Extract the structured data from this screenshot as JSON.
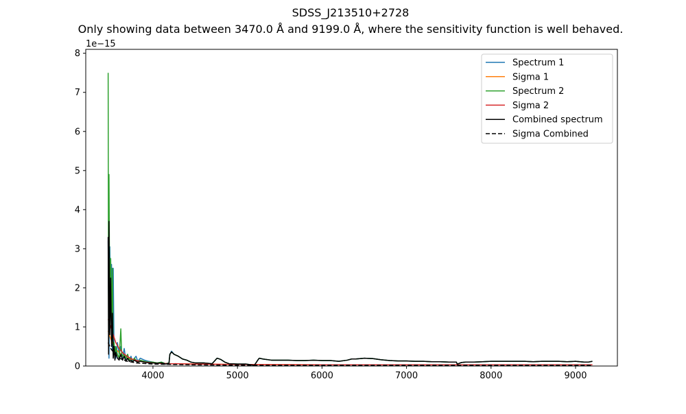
{
  "chart_data": {
    "type": "line",
    "title": "SDSS_J213510+2728",
    "subtitle": "Only showing data between 3470.0 Å and 9199.0 Å, where the sensitivity function is well behaved.",
    "xlabel": "",
    "ylabel": "",
    "y_offset_label": "1e−15",
    "xlim": [
      3205,
      9495
    ],
    "ylim": [
      0,
      8.1
    ],
    "x_ticks": [
      4000,
      5000,
      6000,
      7000,
      8000,
      9000
    ],
    "x_tick_labels": [
      "4000",
      "5000",
      "6000",
      "7000",
      "8000",
      "9000"
    ],
    "y_ticks": [
      0,
      1,
      2,
      3,
      4,
      5,
      6,
      7,
      8
    ],
    "y_tick_labels": [
      "0",
      "1",
      "2",
      "3",
      "4",
      "5",
      "6",
      "7",
      "8"
    ],
    "grid": false,
    "legend_position": "upper right",
    "y_units_scale": "1e-15",
    "series": [
      {
        "name": "Spectrum 1",
        "color": "#1f77b4",
        "dash": "solid",
        "x": [
          3470,
          3480,
          3490,
          3500,
          3510,
          3520,
          3530,
          3540,
          3550,
          3560,
          3580,
          3600,
          3620,
          3640,
          3660,
          3680,
          3700,
          3720,
          3740,
          3760,
          3780,
          3800,
          3820,
          3850,
          3900,
          3950,
          4000,
          4050,
          4100,
          4150,
          4190,
          4200,
          4220,
          4250,
          4300,
          4350,
          4400,
          4450,
          4500,
          4600,
          4700,
          4750,
          4760,
          4800,
          4850,
          4900,
          5000,
          5100,
          5200,
          5250,
          5260,
          5300,
          5400,
          5500,
          5600,
          5700,
          5800,
          5900,
          6000,
          6100,
          6200,
          6300,
          6350,
          6400,
          6500,
          6600,
          6700,
          6800,
          6900,
          7000,
          7100,
          7200,
          7300,
          7400,
          7500,
          7590,
          7600,
          7650,
          7700,
          7800,
          7900,
          8000,
          8100,
          8200,
          8300,
          8400,
          8500,
          8600,
          8700,
          8800,
          8900,
          9000,
          9100,
          9150,
          9199
        ],
        "y": [
          3.2,
          0.2,
          3.05,
          1.5,
          2.6,
          0.4,
          2.5,
          0.3,
          0.5,
          0.2,
          0.6,
          0.3,
          0.5,
          0.2,
          0.45,
          0.15,
          0.3,
          0.15,
          0.25,
          0.1,
          0.2,
          0.25,
          0.12,
          0.2,
          0.15,
          0.12,
          0.1,
          0.08,
          0.1,
          0.06,
          0.08,
          0.3,
          0.38,
          0.3,
          0.25,
          0.18,
          0.15,
          0.1,
          0.08,
          0.08,
          0.06,
          0.18,
          0.2,
          0.17,
          0.1,
          0.06,
          0.05,
          0.05,
          0.02,
          0.18,
          0.2,
          0.18,
          0.15,
          0.15,
          0.15,
          0.14,
          0.14,
          0.15,
          0.14,
          0.14,
          0.12,
          0.15,
          0.18,
          0.18,
          0.2,
          0.19,
          0.16,
          0.14,
          0.13,
          0.13,
          0.12,
          0.12,
          0.11,
          0.11,
          0.1,
          0.1,
          0.05,
          0.09,
          0.1,
          0.1,
          0.11,
          0.12,
          0.12,
          0.12,
          0.12,
          0.12,
          0.11,
          0.12,
          0.12,
          0.12,
          0.11,
          0.12,
          0.1,
          0.1,
          0.12
        ]
      },
      {
        "name": "Sigma 1",
        "color": "#ff7f0e",
        "dash": "solid",
        "x": [
          3470,
          3500,
          3550,
          3600,
          3650,
          3700,
          3800,
          3900,
          4000,
          4200,
          4500,
          5000,
          6000,
          7000,
          8000,
          9000,
          9199
        ],
        "y": [
          0.9,
          0.7,
          0.45,
          0.35,
          0.25,
          0.2,
          0.14,
          0.1,
          0.08,
          0.06,
          0.05,
          0.04,
          0.03,
          0.03,
          0.03,
          0.03,
          0.03
        ]
      },
      {
        "name": "Spectrum 2",
        "color": "#2ca02c",
        "dash": "solid",
        "x": [
          3470,
          3475,
          3480,
          3490,
          3500,
          3510,
          3520,
          3530,
          3540,
          3550,
          3560,
          3580,
          3600,
          3620,
          3630,
          3640,
          3660,
          3680,
          3700,
          3720,
          3740,
          3760,
          3780,
          3800,
          3820,
          3850,
          3900,
          3950,
          4000,
          4050,
          4100,
          4150,
          4190,
          4200,
          4220,
          4250,
          4300,
          4350,
          4400,
          4450,
          4500,
          4600,
          4700,
          4750,
          4760,
          4800,
          4850,
          4900,
          5000,
          5100,
          5200,
          5250,
          5260,
          5300,
          5400,
          5500,
          5600,
          5700,
          5800,
          5900,
          6000,
          6100,
          6200,
          6300,
          6350,
          6400,
          6500,
          6600,
          6700,
          6800,
          6900,
          7000,
          7100,
          7200,
          7300,
          7400,
          7500,
          7590,
          7600,
          7650,
          7700,
          7800,
          7900,
          8000,
          8100,
          8200,
          8300,
          8400,
          8500,
          8600,
          8700,
          8800,
          8900,
          9000,
          9100,
          9150,
          9199
        ],
        "y": [
          7.5,
          0.5,
          4.9,
          1.0,
          2.75,
          1.2,
          2.5,
          0.3,
          0.6,
          0.25,
          0.5,
          0.3,
          0.2,
          0.95,
          0.3,
          0.25,
          0.3,
          0.2,
          0.3,
          0.15,
          0.2,
          0.15,
          0.2,
          0.15,
          0.12,
          0.15,
          0.12,
          0.1,
          0.1,
          0.08,
          0.1,
          0.06,
          0.08,
          0.3,
          0.36,
          0.3,
          0.25,
          0.18,
          0.15,
          0.1,
          0.08,
          0.08,
          0.06,
          0.18,
          0.2,
          0.17,
          0.1,
          0.06,
          0.05,
          0.05,
          0.02,
          0.18,
          0.2,
          0.18,
          0.15,
          0.15,
          0.15,
          0.14,
          0.14,
          0.15,
          0.14,
          0.14,
          0.12,
          0.15,
          0.18,
          0.18,
          0.2,
          0.19,
          0.16,
          0.14,
          0.13,
          0.13,
          0.12,
          0.12,
          0.11,
          0.11,
          0.1,
          0.1,
          0.05,
          0.09,
          0.1,
          0.1,
          0.11,
          0.12,
          0.12,
          0.12,
          0.12,
          0.12,
          0.11,
          0.12,
          0.12,
          0.12,
          0.11,
          0.12,
          0.1,
          0.1,
          0.12
        ]
      },
      {
        "name": "Sigma 2",
        "color": "#d62728",
        "dash": "solid",
        "x": [
          3470,
          3500,
          3530,
          3560,
          3600,
          3650,
          3700,
          3750,
          3800,
          3900,
          4000,
          4200,
          4500,
          5000,
          6000,
          7000,
          8000,
          9000,
          9199
        ],
        "y": [
          1.2,
          1.0,
          0.8,
          0.6,
          0.45,
          0.32,
          0.24,
          0.18,
          0.14,
          0.1,
          0.08,
          0.06,
          0.05,
          0.04,
          0.03,
          0.03,
          0.03,
          0.03,
          0.03
        ]
      },
      {
        "name": "Combined spectrum",
        "color": "#000000",
        "dash": "solid",
        "x": [
          3470,
          3475,
          3480,
          3490,
          3500,
          3510,
          3520,
          3530,
          3540,
          3550,
          3560,
          3580,
          3600,
          3620,
          3640,
          3660,
          3680,
          3700,
          3720,
          3740,
          3760,
          3780,
          3800,
          3820,
          3850,
          3900,
          3950,
          4000,
          4050,
          4100,
          4150,
          4190,
          4200,
          4220,
          4250,
          4300,
          4350,
          4400,
          4450,
          4500,
          4600,
          4700,
          4750,
          4760,
          4800,
          4850,
          4900,
          5000,
          5100,
          5200,
          5250,
          5260,
          5300,
          5400,
          5500,
          5600,
          5700,
          5800,
          5900,
          6000,
          6100,
          6200,
          6300,
          6350,
          6400,
          6500,
          6600,
          6700,
          6800,
          6900,
          7000,
          7100,
          7200,
          7300,
          7400,
          7500,
          7590,
          7600,
          7650,
          7700,
          7800,
          7900,
          8000,
          8100,
          8200,
          8300,
          8400,
          8500,
          8600,
          8700,
          8800,
          8900,
          9000,
          9100,
          9150,
          9199
        ],
        "y": [
          3.3,
          0.3,
          3.7,
          0.8,
          2.25,
          0.5,
          1.35,
          0.2,
          0.5,
          0.15,
          0.35,
          0.2,
          0.15,
          0.3,
          0.15,
          0.25,
          0.12,
          0.2,
          0.12,
          0.15,
          0.1,
          0.15,
          0.12,
          0.1,
          0.12,
          0.1,
          0.08,
          0.08,
          0.07,
          0.08,
          0.05,
          0.07,
          0.3,
          0.36,
          0.3,
          0.25,
          0.18,
          0.15,
          0.1,
          0.08,
          0.08,
          0.06,
          0.18,
          0.2,
          0.17,
          0.1,
          0.06,
          0.05,
          0.05,
          0.02,
          0.18,
          0.2,
          0.18,
          0.15,
          0.15,
          0.15,
          0.14,
          0.14,
          0.15,
          0.14,
          0.14,
          0.12,
          0.15,
          0.18,
          0.18,
          0.2,
          0.19,
          0.16,
          0.14,
          0.13,
          0.13,
          0.12,
          0.12,
          0.11,
          0.11,
          0.1,
          0.1,
          0.05,
          0.09,
          0.1,
          0.1,
          0.11,
          0.12,
          0.12,
          0.12,
          0.12,
          0.12,
          0.11,
          0.12,
          0.12,
          0.12,
          0.11,
          0.12,
          0.1,
          0.1,
          0.12
        ]
      },
      {
        "name": "Sigma Combined",
        "color": "#000000",
        "dash": "dashed",
        "x": [
          3470,
          3500,
          3550,
          3600,
          3700,
          3800,
          4000,
          4500,
          5000,
          6000,
          7000,
          8000,
          9000,
          9199
        ],
        "y": [
          0.6,
          0.45,
          0.3,
          0.2,
          0.12,
          0.08,
          0.05,
          0.03,
          0.02,
          0.02,
          0.02,
          0.02,
          0.02,
          0.02
        ]
      }
    ]
  }
}
